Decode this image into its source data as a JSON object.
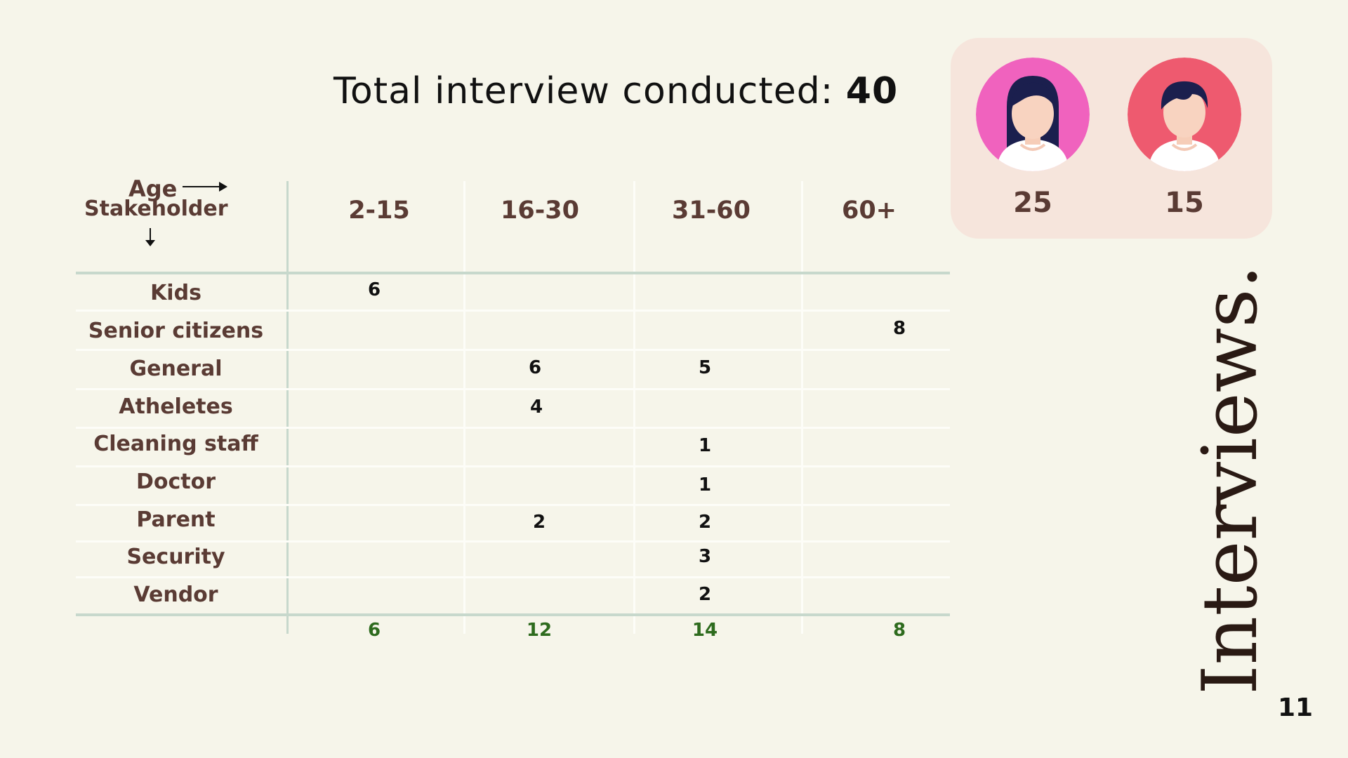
{
  "title": {
    "prefix": "Total interview conducted: ",
    "total": "40"
  },
  "header": {
    "age_label": "Age",
    "stakeholder_label": "Stakeholder"
  },
  "columns": [
    "2-15",
    "16-30",
    "31-60",
    "60+"
  ],
  "rows": [
    {
      "label": "Kids",
      "values": [
        "6",
        "",
        "",
        ""
      ]
    },
    {
      "label": "Senior citizens",
      "values": [
        "",
        "",
        "",
        "8"
      ]
    },
    {
      "label": "General",
      "values": [
        "",
        "6",
        "5",
        ""
      ]
    },
    {
      "label": "Atheletes",
      "values": [
        "",
        "4",
        "",
        ""
      ]
    },
    {
      "label": "Cleaning staff",
      "values": [
        "",
        "",
        "1",
        ""
      ]
    },
    {
      "label": "Doctor",
      "values": [
        "",
        "",
        "1",
        ""
      ]
    },
    {
      "label": "Parent",
      "values": [
        "",
        "2",
        "2",
        ""
      ]
    },
    {
      "label": "Security",
      "values": [
        "",
        "",
        "3",
        ""
      ]
    },
    {
      "label": "Vendor",
      "values": [
        "",
        "",
        "2",
        ""
      ]
    }
  ],
  "totals": [
    "6",
    "12",
    "14",
    "8"
  ],
  "gender_panel": {
    "female_count": "25",
    "male_count": "15"
  },
  "colors": {
    "background": "#f6f5ea",
    "panel": "#f6e5dc",
    "female_avatar": "#f062be",
    "male_avatar": "#ee5a6f",
    "totals": "#2e6b1e"
  },
  "side_title": "Interviews.",
  "page_number": "11"
}
